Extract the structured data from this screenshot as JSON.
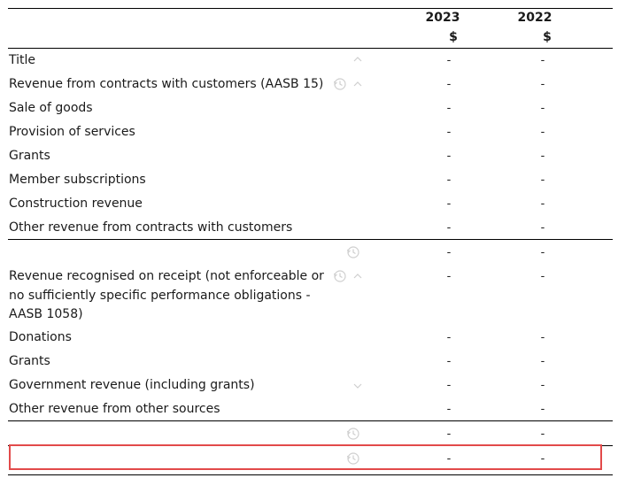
{
  "header": {
    "year_current": "2023",
    "year_prior": "2022",
    "currency_current": "$",
    "currency_prior": "$"
  },
  "rows": [
    {
      "label": "Title",
      "v2023": "-",
      "v2022": "-"
    },
    {
      "label": "Revenue from contracts with customers (AASB 15)",
      "v2023": "-",
      "v2022": "-"
    },
    {
      "label": "Sale of goods",
      "v2023": "-",
      "v2022": "-"
    },
    {
      "label": "Provision of services",
      "v2023": "-",
      "v2022": "-"
    },
    {
      "label": "Grants",
      "v2023": "-",
      "v2022": "-"
    },
    {
      "label": "Member subscriptions",
      "v2023": "-",
      "v2022": "-"
    },
    {
      "label": "Construction revenue",
      "v2023": "-",
      "v2022": "-"
    },
    {
      "label": "Other revenue from contracts with customers",
      "v2023": "-",
      "v2022": "-"
    },
    {
      "label": "",
      "v2023": "-",
      "v2022": "-"
    },
    {
      "label": "Revenue recognised on receipt (not enforceable or no sufficiently specific performance obligations - AASB 1058)",
      "v2023": "-",
      "v2022": "-"
    },
    {
      "label": "Donations",
      "v2023": "-",
      "v2022": "-"
    },
    {
      "label": "Grants",
      "v2023": "-",
      "v2022": "-"
    },
    {
      "label": "Government revenue (including grants)",
      "v2023": "-",
      "v2022": "-"
    },
    {
      "label": "Other revenue from other sources",
      "v2023": "-",
      "v2022": "-"
    },
    {
      "label": "",
      "v2023": "-",
      "v2022": "-"
    },
    {
      "label": "",
      "v2023": "-",
      "v2022": "-"
    }
  ],
  "icons": {
    "chevron_up": "chevron-up-icon",
    "chevron_down": "chevron-down-icon",
    "history": "history-icon"
  },
  "colors": {
    "highlight_border": "#e24a4a",
    "icon_faint": "#c8c8c8",
    "rule": "#000000"
  }
}
